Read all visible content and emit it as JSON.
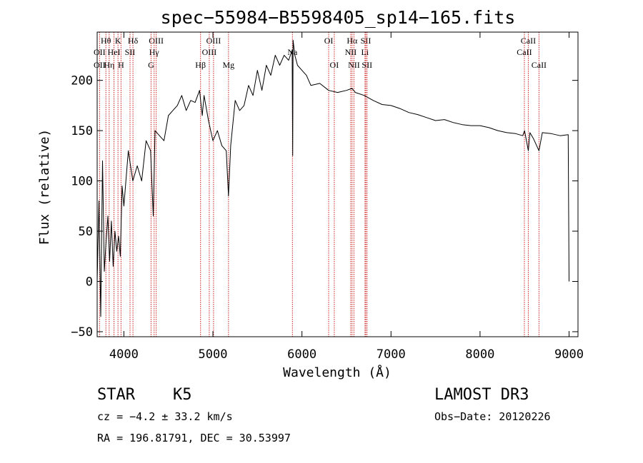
{
  "chart_data": {
    "type": "line",
    "title": "spec−55984−B5598405_sp14−165.fits",
    "xlabel": "Wavelength (Å)",
    "ylabel": "Flux (relative)",
    "xlim": [
      3700,
      9100
    ],
    "ylim": [
      -55,
      248
    ],
    "xticks": [
      4000,
      5000,
      6000,
      7000,
      8000,
      9000
    ],
    "yticks": [
      -50,
      0,
      50,
      100,
      150,
      200
    ],
    "xtick_labels": [
      "4000",
      "5000",
      "6000",
      "7000",
      "8000",
      "9000"
    ],
    "ytick_labels": [
      "−50",
      "0",
      "50",
      "100",
      "150",
      "200"
    ],
    "series": [
      {
        "name": "flux",
        "x": [
          3700,
          3720,
          3740,
          3760,
          3780,
          3800,
          3820,
          3840,
          3860,
          3880,
          3900,
          3920,
          3940,
          3960,
          3980,
          4000,
          4050,
          4100,
          4150,
          4200,
          4250,
          4300,
          4330,
          4350,
          4400,
          4450,
          4500,
          4550,
          4600,
          4650,
          4700,
          4750,
          4800,
          4850,
          4880,
          4900,
          4950,
          5000,
          5050,
          5100,
          5150,
          5175,
          5200,
          5250,
          5300,
          5350,
          5400,
          5450,
          5500,
          5550,
          5600,
          5650,
          5700,
          5750,
          5800,
          5850,
          5890,
          5896,
          5900,
          5920,
          5950,
          6000,
          6050,
          6100,
          6200,
          6300,
          6400,
          6500,
          6563,
          6600,
          6700,
          6800,
          6900,
          7000,
          7100,
          7200,
          7300,
          7400,
          7500,
          7600,
          7700,
          7800,
          7900,
          8000,
          8100,
          8200,
          8300,
          8400,
          8480,
          8500,
          8542,
          8560,
          8600,
          8662,
          8700,
          8800,
          8900,
          8990,
          9000
        ],
        "y": [
          0,
          80,
          -35,
          120,
          10,
          40,
          65,
          20,
          60,
          15,
          50,
          30,
          45,
          25,
          95,
          75,
          130,
          100,
          115,
          100,
          140,
          130,
          65,
          150,
          145,
          140,
          165,
          170,
          175,
          185,
          170,
          180,
          178,
          190,
          165,
          185,
          160,
          140,
          150,
          135,
          130,
          85,
          135,
          180,
          170,
          175,
          195,
          185,
          210,
          190,
          215,
          205,
          225,
          215,
          225,
          220,
          230,
          125,
          240,
          225,
          215,
          210,
          205,
          195,
          197,
          190,
          188,
          190,
          192,
          188,
          185,
          180,
          176,
          175,
          172,
          168,
          166,
          163,
          160,
          161,
          158,
          156,
          155,
          155,
          153,
          150,
          148,
          147,
          145,
          150,
          130,
          148,
          142,
          130,
          148,
          147,
          145,
          146,
          0
        ]
      }
    ],
    "spectral_lines": [
      {
        "label": "Hθ",
        "x": 3798,
        "row": 1
      },
      {
        "label": "OII",
        "x": 3727,
        "row": 2
      },
      {
        "label": "OII",
        "x": 3727,
        "row": 3
      },
      {
        "label": "Hη",
        "x": 3835,
        "row": 3
      },
      {
        "label": "K",
        "x": 3934,
        "row": 1
      },
      {
        "label": "HeI",
        "x": 3889,
        "row": 2
      },
      {
        "label": "SII",
        "x": 4069,
        "row": 2
      },
      {
        "label": "H",
        "x": 3968,
        "row": 3
      },
      {
        "label": "Hδ",
        "x": 4102,
        "row": 1
      },
      {
        "label": "OIII",
        "x": 4363,
        "row": 1
      },
      {
        "label": "Hγ",
        "x": 4340,
        "row": 2
      },
      {
        "label": "G",
        "x": 4305,
        "row": 3
      },
      {
        "label": "Hβ",
        "x": 4861,
        "row": 3
      },
      {
        "label": "OIII",
        "x": 5007,
        "row": 1
      },
      {
        "label": "OIII",
        "x": 4959,
        "row": 2
      },
      {
        "label": "Mg",
        "x": 5175,
        "row": 3
      },
      {
        "label": "Na",
        "x": 5893,
        "row": 2
      },
      {
        "label": "OI",
        "x": 6300,
        "row": 1
      },
      {
        "label": "OI",
        "x": 6363,
        "row": 3
      },
      {
        "label": "Hα",
        "x": 6563,
        "row": 1
      },
      {
        "label": "SII",
        "x": 6717,
        "row": 1
      },
      {
        "label": "NII",
        "x": 6548,
        "row": 2
      },
      {
        "label": "Li",
        "x": 6708,
        "row": 2
      },
      {
        "label": "NII",
        "x": 6584,
        "row": 3
      },
      {
        "label": "SII",
        "x": 6731,
        "row": 3
      },
      {
        "label": "CaII",
        "x": 8542,
        "row": 1
      },
      {
        "label": "CaII",
        "x": 8498,
        "row": 2
      },
      {
        "label": "CaII",
        "x": 8662,
        "row": 3
      }
    ],
    "colors": {
      "line": "#000000",
      "marker": "#cc2222"
    }
  },
  "info": {
    "object_class": "STAR",
    "subclass": "K5",
    "survey": "LAMOST DR3",
    "cz": "cz = −4.2 ± 33.2 km/s",
    "obs_date": "Obs−Date: 20120226",
    "coords": "RA = 196.81791, DEC =  30.53997"
  }
}
